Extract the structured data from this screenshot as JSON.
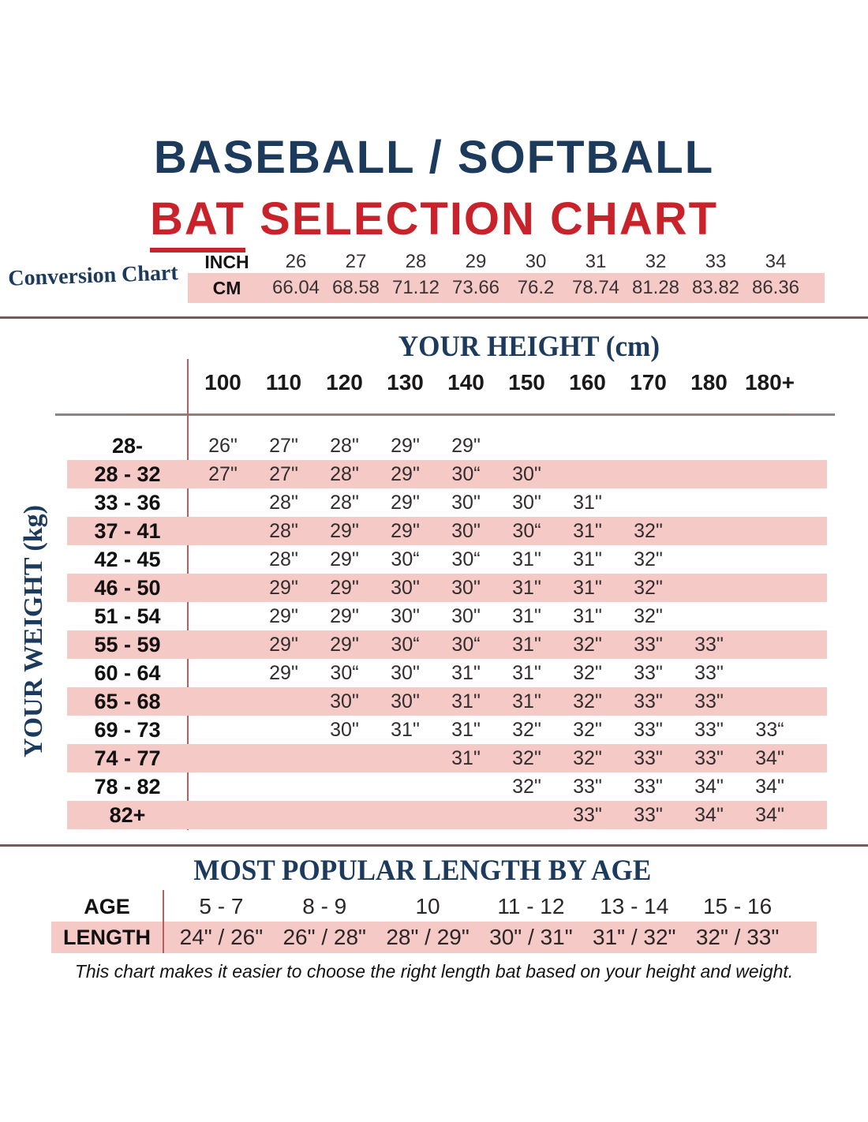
{
  "colors": {
    "navy": "#1c3a5c",
    "red": "#c8232a",
    "pink_stripe": "#f5c9c6",
    "rule_red": "#b4605f",
    "rule_dark": "#745a58",
    "rule_gray": "#8a8484",
    "text_dark": "#332d2f"
  },
  "title": {
    "line1": "BASEBALL / SOFTBALL",
    "line2_word": "BAT",
    "line2_rest": "SELECTION CHART"
  },
  "conversion_chart": {
    "label": "Conversion Chart",
    "inch_header": "INCH",
    "cm_header": "CM",
    "inches": [
      "26",
      "27",
      "28",
      "29",
      "30",
      "31",
      "32",
      "33",
      "34"
    ],
    "cms": [
      "66.04",
      "68.58",
      "71.12",
      "73.66",
      "76.2",
      "78.74",
      "81.28",
      "83.82",
      "86.36"
    ]
  },
  "height_table": {
    "title": "YOUR HEIGHT (cm)",
    "side_title": "YOUR WEIGHT (kg)",
    "columns": [
      "100",
      "110",
      "120",
      "130",
      "140",
      "150",
      "160",
      "170",
      "180",
      "180+"
    ],
    "rows": [
      {
        "label": "28-",
        "pink": false,
        "values": [
          "26\"",
          "27\"",
          "28\"",
          "29\"",
          "29\"",
          "",
          "",
          "",
          "",
          ""
        ]
      },
      {
        "label": "28 - 32",
        "pink": true,
        "values": [
          "27\"",
          "27\"",
          "28\"",
          "29\"",
          "30“",
          "30\"",
          "",
          "",
          "",
          ""
        ]
      },
      {
        "label": "33 - 36",
        "pink": false,
        "values": [
          "",
          "28\"",
          "28\"",
          "29\"",
          "30\"",
          "30\"",
          "31\"",
          "",
          "",
          ""
        ]
      },
      {
        "label": "37 - 41",
        "pink": true,
        "values": [
          "",
          "28\"",
          "29\"",
          "29\"",
          "30\"",
          "30“",
          "31\"",
          "32\"",
          "",
          ""
        ]
      },
      {
        "label": "42 - 45",
        "pink": false,
        "values": [
          "",
          "28\"",
          "29\"",
          "30“",
          "30“",
          "31\"",
          "31\"",
          "32\"",
          "",
          ""
        ]
      },
      {
        "label": "46 - 50",
        "pink": true,
        "values": [
          "",
          "29\"",
          "29\"",
          "30\"",
          "30\"",
          "31\"",
          "31\"",
          "32\"",
          "",
          ""
        ]
      },
      {
        "label": "51 - 54",
        "pink": false,
        "values": [
          "",
          "29\"",
          "29\"",
          "30\"",
          "30\"",
          "31\"",
          "31\"",
          "32\"",
          "",
          ""
        ]
      },
      {
        "label": "55 - 59",
        "pink": true,
        "values": [
          "",
          "29\"",
          "29\"",
          "30“",
          "30“",
          "31\"",
          "32\"",
          "33\"",
          "33\"",
          ""
        ]
      },
      {
        "label": "60 - 64",
        "pink": false,
        "values": [
          "",
          "29\"",
          "30“",
          "30\"",
          "31\"",
          "31\"",
          "32\"",
          "33\"",
          "33\"",
          ""
        ]
      },
      {
        "label": "65 - 68",
        "pink": true,
        "values": [
          "",
          "",
          "30\"",
          "30\"",
          "31\"",
          "31\"",
          "32\"",
          "33\"",
          "33\"",
          ""
        ]
      },
      {
        "label": "69 - 73",
        "pink": false,
        "values": [
          "",
          "",
          "30\"",
          "31\"",
          "31\"",
          "32\"",
          "32\"",
          "33\"",
          "33\"",
          "33“"
        ]
      },
      {
        "label": "74 - 77",
        "pink": true,
        "values": [
          "",
          "",
          "",
          "",
          "31\"",
          "32\"",
          "32\"",
          "33\"",
          "33\"",
          "34\""
        ]
      },
      {
        "label": "78 - 82",
        "pink": false,
        "values": [
          "",
          "",
          "",
          "",
          "",
          "32\"",
          "33\"",
          "33\"",
          "34\"",
          "34\""
        ]
      },
      {
        "label": "82+",
        "pink": true,
        "values": [
          "",
          "",
          "",
          "",
          "",
          "",
          "33\"",
          "33\"",
          "34\"",
          "34\""
        ]
      }
    ]
  },
  "age_table": {
    "title": "MOST POPULAR LENGTH BY AGE",
    "age_header": "AGE",
    "length_header": "LENGTH",
    "ages": [
      "5 - 7",
      "8 - 9",
      "10",
      "11 - 12",
      "13 - 14",
      "15 - 16"
    ],
    "lengths": [
      "24\" / 26\"",
      "26\" / 28\"",
      "28\" / 29\"",
      "30\" / 31\"",
      "31\" / 32\"",
      "32\" / 33\""
    ]
  },
  "footer_note": "This chart makes it easier to choose the right length bat based on your height and weight.",
  "chart_data": [
    {
      "type": "table",
      "title": "Conversion Chart (inch to cm)",
      "columns": [
        26,
        27,
        28,
        29,
        30,
        31,
        32,
        33,
        34
      ],
      "rows": [
        {
          "name": "CM",
          "values": [
            66.04,
            68.58,
            71.12,
            73.66,
            76.2,
            78.74,
            81.28,
            83.82,
            86.36
          ]
        }
      ]
    },
    {
      "type": "table",
      "title": "Bat length (inches) by height and weight",
      "xlabel": "YOUR HEIGHT (cm)",
      "ylabel": "YOUR WEIGHT (kg)",
      "columns": [
        "100",
        "110",
        "120",
        "130",
        "140",
        "150",
        "160",
        "170",
        "180",
        "180+"
      ],
      "rows": [
        {
          "name": "28-",
          "values": [
            26,
            27,
            28,
            29,
            29,
            null,
            null,
            null,
            null,
            null
          ]
        },
        {
          "name": "28 - 32",
          "values": [
            27,
            27,
            28,
            29,
            30,
            30,
            null,
            null,
            null,
            null
          ]
        },
        {
          "name": "33 - 36",
          "values": [
            null,
            28,
            28,
            29,
            30,
            30,
            31,
            null,
            null,
            null
          ]
        },
        {
          "name": "37 - 41",
          "values": [
            null,
            28,
            29,
            29,
            30,
            30,
            31,
            32,
            null,
            null
          ]
        },
        {
          "name": "42 - 45",
          "values": [
            null,
            28,
            29,
            30,
            30,
            31,
            31,
            32,
            null,
            null
          ]
        },
        {
          "name": "46 - 50",
          "values": [
            null,
            29,
            29,
            30,
            30,
            31,
            31,
            32,
            null,
            null
          ]
        },
        {
          "name": "51 - 54",
          "values": [
            null,
            29,
            29,
            30,
            30,
            31,
            31,
            32,
            null,
            null
          ]
        },
        {
          "name": "55 - 59",
          "values": [
            null,
            29,
            29,
            30,
            30,
            31,
            32,
            33,
            33,
            null
          ]
        },
        {
          "name": "60 - 64",
          "values": [
            null,
            29,
            30,
            30,
            31,
            31,
            32,
            33,
            33,
            null
          ]
        },
        {
          "name": "65 - 68",
          "values": [
            null,
            null,
            30,
            30,
            31,
            31,
            32,
            33,
            33,
            null
          ]
        },
        {
          "name": "69 - 73",
          "values": [
            null,
            null,
            30,
            31,
            31,
            32,
            32,
            33,
            33,
            33
          ]
        },
        {
          "name": "74 - 77",
          "values": [
            null,
            null,
            null,
            null,
            31,
            32,
            32,
            33,
            33,
            34
          ]
        },
        {
          "name": "78 - 82",
          "values": [
            null,
            null,
            null,
            null,
            null,
            32,
            33,
            33,
            34,
            34
          ]
        },
        {
          "name": "82+",
          "values": [
            null,
            null,
            null,
            null,
            null,
            null,
            33,
            33,
            34,
            34
          ]
        }
      ]
    },
    {
      "type": "table",
      "title": "MOST POPULAR LENGTH BY AGE",
      "columns": [
        "5 - 7",
        "8 - 9",
        "10",
        "11 - 12",
        "13 - 14",
        "15 - 16"
      ],
      "rows": [
        {
          "name": "LENGTH",
          "values": [
            "24\" / 26\"",
            "26\" / 28\"",
            "28\" / 29\"",
            "30\" / 31\"",
            "31\" / 32\"",
            "32\" / 33\""
          ]
        }
      ]
    }
  ]
}
